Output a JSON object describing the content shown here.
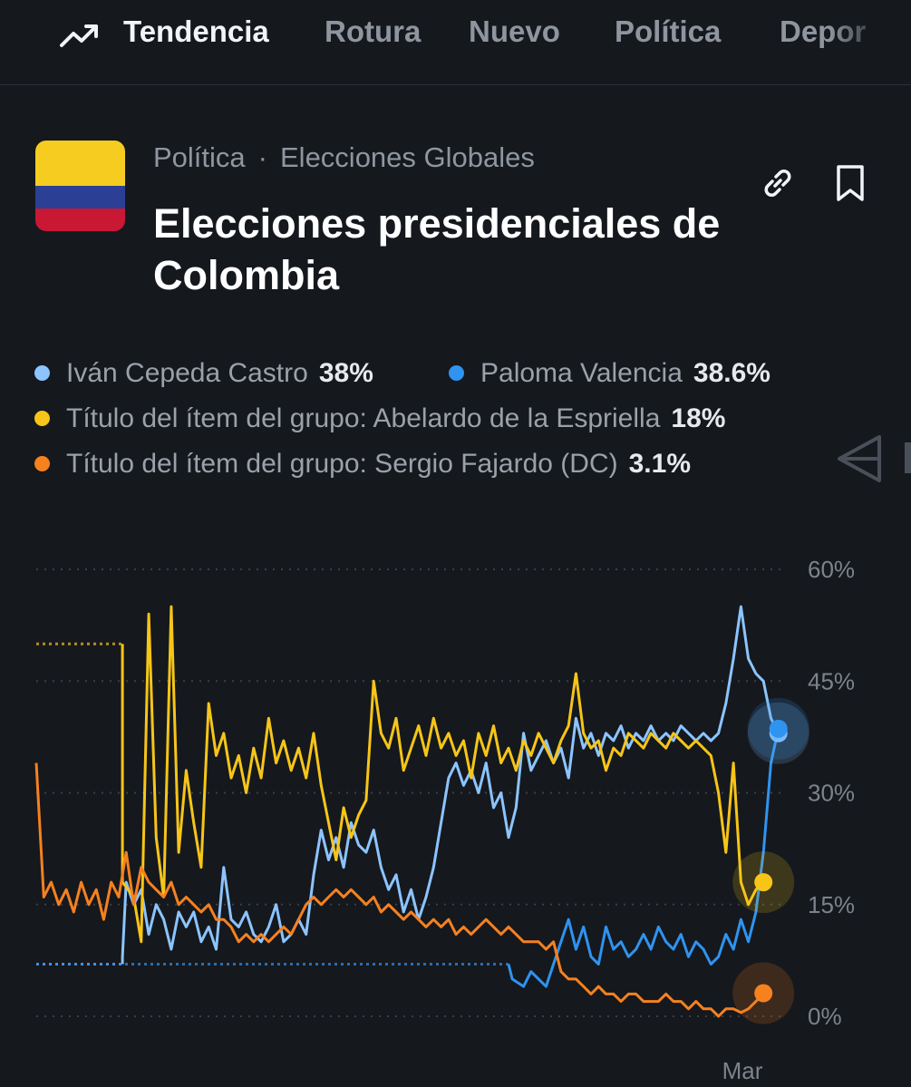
{
  "nav": {
    "items": [
      {
        "label": "Tendencia",
        "active": true,
        "icon": "trending-up-icon"
      },
      {
        "label": "Rotura",
        "active": false
      },
      {
        "label": "Nuevo",
        "active": false
      },
      {
        "label": "Política",
        "active": false
      },
      {
        "label": "Depor",
        "active": false
      }
    ]
  },
  "market": {
    "category": "Política",
    "separator": "·",
    "subcategory": "Elecciones Globales",
    "title": "Elecciones presidenciales de Colombia",
    "flag": "colombia-flag",
    "actions": {
      "link_icon": "link-icon",
      "bookmark_icon": "bookmark-icon"
    }
  },
  "legend": [
    {
      "name": "Iván Cepeda Castro",
      "value": "38%",
      "color": "#8cc4ff"
    },
    {
      "name": "Paloma Valencia",
      "value": "38.6%",
      "color": "#2f93f0"
    },
    {
      "name": "Título del ítem del grupo: Abelardo de la Espriella",
      "value": "18%",
      "color": "#f6c518"
    },
    {
      "name": "Título del ítem del grupo: Sergio Fajardo (DC)",
      "value": "3.1%",
      "color": "#f5811f"
    }
  ],
  "colors": {
    "background": "#15181d",
    "grid": "#3a3f47"
  },
  "chart_data": {
    "type": "line",
    "y_ticks": [
      "60%",
      "45%",
      "30%",
      "15%",
      "0%"
    ],
    "y_tick_values": [
      60,
      45,
      30,
      15,
      0
    ],
    "x_tick_labels": [
      "Mar"
    ],
    "ylim": [
      0,
      60
    ],
    "grid": true,
    "x_domain": [
      0,
      100
    ],
    "x_tick_positions": [
      94.2
    ],
    "series": [
      {
        "name": "Iván Cepeda Castro",
        "color": "#8cc4ff",
        "end_value": 38,
        "values": [
          [
            0,
            7
          ],
          [
            11.5,
            7
          ],
          [
            11.5,
            8
          ],
          [
            12,
            18
          ],
          [
            13,
            15
          ],
          [
            14,
            17
          ],
          [
            15,
            11
          ],
          [
            16,
            15
          ],
          [
            17,
            13
          ],
          [
            18,
            9
          ],
          [
            19,
            14
          ],
          [
            20,
            12
          ],
          [
            21,
            14
          ],
          [
            22,
            10
          ],
          [
            23,
            12
          ],
          [
            24,
            9
          ],
          [
            25,
            20
          ],
          [
            26,
            13
          ],
          [
            27,
            12
          ],
          [
            28,
            14
          ],
          [
            29,
            11
          ],
          [
            30,
            10
          ],
          [
            31,
            12
          ],
          [
            32,
            15
          ],
          [
            33,
            10
          ],
          [
            34,
            11
          ],
          [
            35,
            13
          ],
          [
            36,
            11
          ],
          [
            37,
            19
          ],
          [
            38,
            25
          ],
          [
            39,
            21
          ],
          [
            40,
            24
          ],
          [
            41,
            20
          ],
          [
            42,
            26
          ],
          [
            43,
            23
          ],
          [
            44,
            22
          ],
          [
            45,
            25
          ],
          [
            46,
            20
          ],
          [
            47,
            17
          ],
          [
            48,
            19
          ],
          [
            49,
            14
          ],
          [
            50,
            17
          ],
          [
            51,
            13
          ],
          [
            52,
            16
          ],
          [
            53,
            20
          ],
          [
            54,
            26
          ],
          [
            55,
            32
          ],
          [
            56,
            34
          ],
          [
            57,
            31
          ],
          [
            58,
            33
          ],
          [
            59,
            30
          ],
          [
            60,
            34
          ],
          [
            61,
            28
          ],
          [
            62,
            30
          ],
          [
            63,
            24
          ],
          [
            64,
            28
          ],
          [
            65,
            38
          ],
          [
            66,
            33
          ],
          [
            67,
            35
          ],
          [
            68,
            37
          ],
          [
            69,
            34
          ],
          [
            70,
            36
          ],
          [
            71,
            32
          ],
          [
            72,
            40
          ],
          [
            73,
            36
          ],
          [
            74,
            38
          ],
          [
            75,
            35
          ],
          [
            76,
            38
          ],
          [
            77,
            37
          ],
          [
            78,
            39
          ],
          [
            79,
            36
          ],
          [
            80,
            38
          ],
          [
            81,
            37
          ],
          [
            82,
            39
          ],
          [
            83,
            37
          ],
          [
            84,
            38
          ],
          [
            85,
            37
          ],
          [
            86,
            39
          ],
          [
            87,
            38
          ],
          [
            88,
            37
          ],
          [
            89,
            38
          ],
          [
            90,
            37
          ],
          [
            91,
            38
          ],
          [
            92,
            42
          ],
          [
            93,
            48
          ],
          [
            94,
            55
          ],
          [
            95,
            48
          ],
          [
            96,
            46
          ],
          [
            97,
            45
          ],
          [
            98,
            40
          ],
          [
            99,
            38
          ]
        ]
      },
      {
        "name": "Paloma Valencia",
        "color": "#2f93f0",
        "end_value": 38.6,
        "values": [
          [
            0,
            7
          ],
          [
            63,
            7
          ],
          [
            63.5,
            5
          ],
          [
            65,
            4
          ],
          [
            66,
            6
          ],
          [
            67,
            5
          ],
          [
            68,
            4
          ],
          [
            69,
            7
          ],
          [
            70,
            10
          ],
          [
            71,
            13
          ],
          [
            72,
            9
          ],
          [
            73,
            12
          ],
          [
            74,
            8
          ],
          [
            75,
            7
          ],
          [
            76,
            12
          ],
          [
            77,
            9
          ],
          [
            78,
            10
          ],
          [
            79,
            8
          ],
          [
            80,
            9
          ],
          [
            81,
            11
          ],
          [
            82,
            9
          ],
          [
            83,
            12
          ],
          [
            84,
            10
          ],
          [
            85,
            9
          ],
          [
            86,
            11
          ],
          [
            87,
            8
          ],
          [
            88,
            10
          ],
          [
            89,
            9
          ],
          [
            90,
            7
          ],
          [
            91,
            8
          ],
          [
            92,
            11
          ],
          [
            93,
            9
          ],
          [
            94,
            13
          ],
          [
            95,
            10
          ],
          [
            96,
            14
          ],
          [
            97,
            22
          ],
          [
            98,
            34
          ],
          [
            99,
            38.6
          ]
        ]
      },
      {
        "name": "Título del ítem del grupo: Abelardo de la Espriella",
        "color": "#f6c518",
        "end_value": 18,
        "values": [
          [
            0,
            50
          ],
          [
            11.5,
            50
          ],
          [
            11.5,
            18
          ],
          [
            13,
            16
          ],
          [
            14,
            10
          ],
          [
            15,
            54
          ],
          [
            16,
            24
          ],
          [
            17,
            16
          ],
          [
            18,
            55
          ],
          [
            19,
            22
          ],
          [
            20,
            33
          ],
          [
            21,
            26
          ],
          [
            22,
            20
          ],
          [
            23,
            42
          ],
          [
            24,
            35
          ],
          [
            25,
            38
          ],
          [
            26,
            32
          ],
          [
            27,
            35
          ],
          [
            28,
            30
          ],
          [
            29,
            36
          ],
          [
            30,
            32
          ],
          [
            31,
            40
          ],
          [
            32,
            34
          ],
          [
            33,
            37
          ],
          [
            34,
            33
          ],
          [
            35,
            36
          ],
          [
            36,
            32
          ],
          [
            37,
            38
          ],
          [
            38,
            31
          ],
          [
            39,
            26
          ],
          [
            40,
            21
          ],
          [
            41,
            28
          ],
          [
            42,
            24
          ],
          [
            43,
            27
          ],
          [
            44,
            29
          ],
          [
            45,
            45
          ],
          [
            46,
            38
          ],
          [
            47,
            36
          ],
          [
            48,
            40
          ],
          [
            49,
            33
          ],
          [
            50,
            36
          ],
          [
            51,
            39
          ],
          [
            52,
            35
          ],
          [
            53,
            40
          ],
          [
            54,
            36
          ],
          [
            55,
            38
          ],
          [
            56,
            35
          ],
          [
            57,
            37
          ],
          [
            58,
            32
          ],
          [
            59,
            38
          ],
          [
            60,
            35
          ],
          [
            61,
            39
          ],
          [
            62,
            34
          ],
          [
            63,
            36
          ],
          [
            64,
            33
          ],
          [
            65,
            37
          ],
          [
            66,
            35
          ],
          [
            67,
            38
          ],
          [
            68,
            36
          ],
          [
            69,
            34
          ],
          [
            70,
            37
          ],
          [
            71,
            39
          ],
          [
            72,
            46
          ],
          [
            73,
            38
          ],
          [
            74,
            36
          ],
          [
            75,
            37
          ],
          [
            76,
            33
          ],
          [
            77,
            36
          ],
          [
            78,
            35
          ],
          [
            79,
            38
          ],
          [
            80,
            37
          ],
          [
            81,
            36
          ],
          [
            82,
            38
          ],
          [
            83,
            37
          ],
          [
            84,
            36
          ],
          [
            85,
            38
          ],
          [
            86,
            37
          ],
          [
            87,
            36
          ],
          [
            88,
            37
          ],
          [
            89,
            36
          ],
          [
            90,
            35
          ],
          [
            91,
            30
          ],
          [
            92,
            22
          ],
          [
            93,
            34
          ],
          [
            94,
            18
          ],
          [
            95,
            15
          ],
          [
            96,
            17
          ],
          [
            97,
            18
          ]
        ]
      },
      {
        "name": "Título del ítem del grupo: Sergio Fajardo (DC)",
        "color": "#f5811f",
        "end_value": 3.1,
        "values": [
          [
            0,
            34
          ],
          [
            1,
            16
          ],
          [
            2,
            18
          ],
          [
            3,
            15
          ],
          [
            4,
            17
          ],
          [
            5,
            14
          ],
          [
            6,
            18
          ],
          [
            7,
            15
          ],
          [
            8,
            17
          ],
          [
            9,
            13
          ],
          [
            10,
            18
          ],
          [
            11,
            16
          ],
          [
            12,
            22
          ],
          [
            13,
            15
          ],
          [
            14,
            20
          ],
          [
            15,
            18
          ],
          [
            16,
            17
          ],
          [
            17,
            16
          ],
          [
            18,
            18
          ],
          [
            19,
            15
          ],
          [
            20,
            16
          ],
          [
            21,
            15
          ],
          [
            22,
            14
          ],
          [
            23,
            15
          ],
          [
            24,
            13
          ],
          [
            25,
            13
          ],
          [
            26,
            12
          ],
          [
            27,
            10
          ],
          [
            28,
            11
          ],
          [
            29,
            10
          ],
          [
            30,
            11
          ],
          [
            31,
            10
          ],
          [
            32,
            11
          ],
          [
            33,
            12
          ],
          [
            34,
            11
          ],
          [
            35,
            13
          ],
          [
            36,
            15
          ],
          [
            37,
            16
          ],
          [
            38,
            15
          ],
          [
            39,
            16
          ],
          [
            40,
            17
          ],
          [
            41,
            16
          ],
          [
            42,
            17
          ],
          [
            43,
            16
          ],
          [
            44,
            15
          ],
          [
            45,
            16
          ],
          [
            46,
            14
          ],
          [
            47,
            15
          ],
          [
            48,
            14
          ],
          [
            49,
            13
          ],
          [
            50,
            14
          ],
          [
            51,
            13
          ],
          [
            52,
            12
          ],
          [
            53,
            13
          ],
          [
            54,
            12
          ],
          [
            55,
            13
          ],
          [
            56,
            11
          ],
          [
            57,
            12
          ],
          [
            58,
            11
          ],
          [
            59,
            12
          ],
          [
            60,
            13
          ],
          [
            61,
            12
          ],
          [
            62,
            11
          ],
          [
            63,
            12
          ],
          [
            64,
            11
          ],
          [
            65,
            10
          ],
          [
            66,
            10
          ],
          [
            67,
            10
          ],
          [
            68,
            9
          ],
          [
            69,
            10
          ],
          [
            70,
            6
          ],
          [
            71,
            5
          ],
          [
            72,
            5
          ],
          [
            73,
            4
          ],
          [
            74,
            3
          ],
          [
            75,
            4
          ],
          [
            76,
            3
          ],
          [
            77,
            3
          ],
          [
            78,
            2
          ],
          [
            79,
            3
          ],
          [
            80,
            3
          ],
          [
            81,
            2
          ],
          [
            82,
            2
          ],
          [
            83,
            2
          ],
          [
            84,
            3
          ],
          [
            85,
            2
          ],
          [
            86,
            2
          ],
          [
            87,
            1
          ],
          [
            88,
            2
          ],
          [
            89,
            1
          ],
          [
            90,
            1
          ],
          [
            91,
            0
          ],
          [
            92,
            1
          ],
          [
            93,
            1
          ],
          [
            94,
            0.5
          ],
          [
            95,
            1
          ],
          [
            96,
            2
          ],
          [
            97,
            3.1
          ]
        ]
      }
    ]
  }
}
